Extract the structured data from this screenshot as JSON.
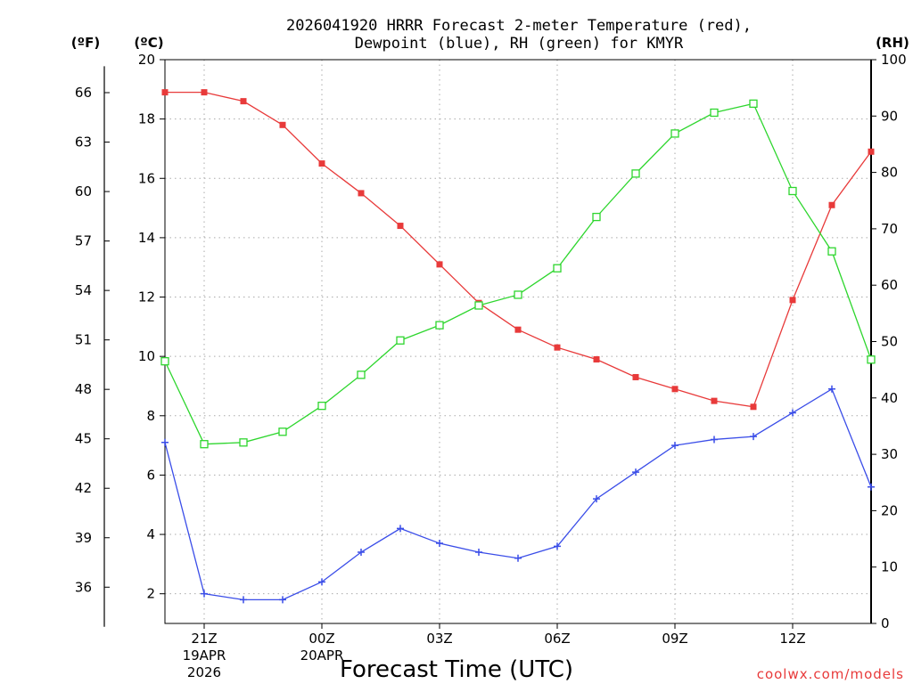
{
  "chart_data": {
    "type": "line",
    "title_line1": "2026041920 HRRR Forecast 2-meter Temperature (red),",
    "title_line2": "Dewpoint (blue), RH (green) for KMYR",
    "xlabel": "Forecast Time (UTC)",
    "credit": "coolwx.com/models",
    "unit_f": "(ºF)",
    "unit_c": "(ºC)",
    "unit_rh": "(RH)",
    "x": [
      0,
      1,
      2,
      3,
      4,
      5,
      6,
      7,
      8,
      9,
      10,
      11,
      12,
      13,
      14,
      15,
      16,
      17,
      18
    ],
    "xlim": [
      0,
      18
    ],
    "ylim_c": [
      1,
      20
    ],
    "ylim_rh": [
      0,
      100
    ],
    "x_ticks": [
      {
        "x": 1,
        "label": "21Z",
        "sub1": "19APR",
        "sub2": "2026"
      },
      {
        "x": 4,
        "label": "00Z",
        "sub1": "20APR",
        "sub2": ""
      },
      {
        "x": 7,
        "label": "03Z",
        "sub1": "",
        "sub2": ""
      },
      {
        "x": 10,
        "label": "06Z",
        "sub1": "",
        "sub2": ""
      },
      {
        "x": 13,
        "label": "09Z",
        "sub1": "",
        "sub2": ""
      },
      {
        "x": 16,
        "label": "12Z",
        "sub1": "",
        "sub2": ""
      }
    ],
    "c_ticks": [
      2,
      4,
      6,
      8,
      10,
      12,
      14,
      16,
      18,
      20
    ],
    "f_ticks": [
      36,
      39,
      42,
      45,
      48,
      51,
      54,
      57,
      60,
      63,
      66
    ],
    "rh_ticks": [
      0,
      10,
      20,
      30,
      40,
      50,
      60,
      70,
      80,
      90,
      100
    ],
    "series": [
      {
        "name": "Temperature",
        "color": "#e83a3a",
        "axis": "c",
        "marker": "filled-square",
        "values": [
          18.9,
          18.9,
          18.6,
          17.8,
          16.5,
          15.5,
          14.4,
          13.1,
          11.8,
          10.9,
          10.3,
          9.9,
          9.3,
          8.9,
          8.5,
          8.3,
          11.9,
          15.1,
          16.9
        ]
      },
      {
        "name": "Dewpoint",
        "color": "#3a4de8",
        "axis": "c",
        "marker": "plus",
        "values": [
          7.1,
          2.0,
          1.8,
          1.8,
          2.4,
          3.4,
          4.2,
          3.7,
          3.4,
          3.2,
          3.6,
          5.2,
          6.1,
          7.0,
          7.2,
          7.3,
          8.1,
          8.9,
          5.6
        ]
      },
      {
        "name": "RH",
        "color": "#2ed62e",
        "axis": "rh",
        "marker": "open-square",
        "values": [
          46.5,
          31.8,
          32.1,
          34.0,
          38.6,
          44.1,
          50.2,
          52.9,
          56.4,
          58.3,
          63.0,
          72.1,
          79.8,
          86.9,
          90.6,
          92.2,
          76.7,
          66.0,
          46.8
        ]
      }
    ]
  }
}
